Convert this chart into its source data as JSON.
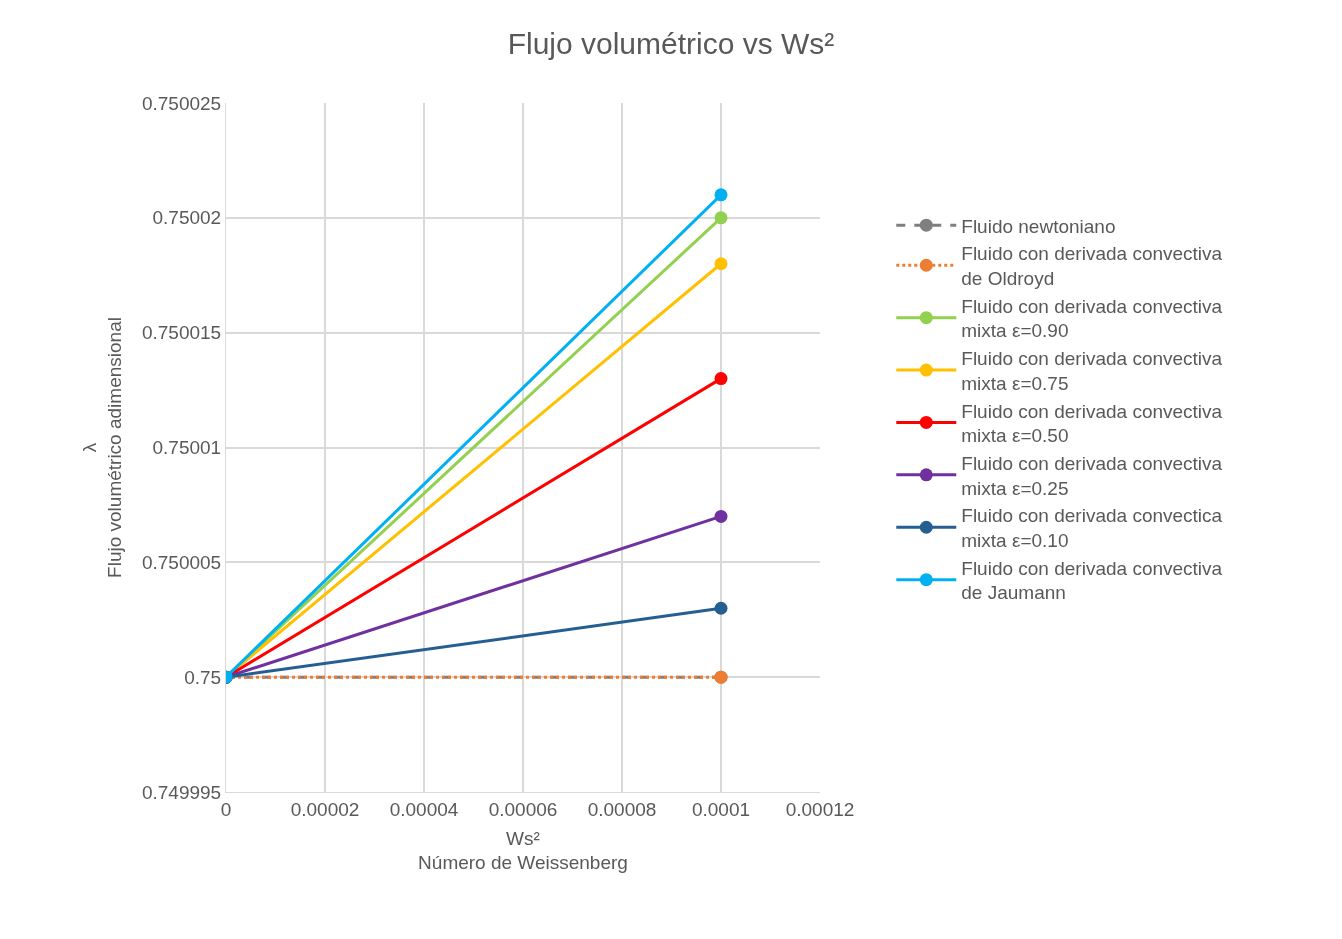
{
  "chart_data": {
    "type": "line",
    "title": "Flujo volumétrico vs Ws²",
    "xlabel": "Ws²\nNúmero de Weissenberg",
    "ylabel": "λ\nFlujo volumétrico adimensional",
    "x": [
      0,
      0.0001
    ],
    "series": [
      {
        "name": "Fluido newtoniano",
        "color": "#7f7f7f",
        "line_style": "dashed",
        "values": [
          0.75,
          0.75
        ]
      },
      {
        "name": "Fluido con derivada convectiva de Oldroyd",
        "color": "#ed7d31",
        "line_style": "dotted",
        "values": [
          0.75,
          0.75
        ]
      },
      {
        "name": "Fluido con derivada convectiva mixta ε=0.90",
        "color": "#92d050",
        "values": [
          0.75,
          0.75002
        ]
      },
      {
        "name": "Fluido con derivada convectiva mixta ε=0.75",
        "color": "#ffc000",
        "values": [
          0.75,
          0.750018
        ]
      },
      {
        "name": "Fluido con derivada convectiva mixta ε=0.50",
        "color": "#ff0000",
        "values": [
          0.75,
          0.750013
        ]
      },
      {
        "name": "Fluido con derivada convectiva mixta ε=0.25",
        "color": "#7030a0",
        "values": [
          0.75,
          0.750007
        ]
      },
      {
        "name": "Fluido con derivada convectica mixta ε=0.10",
        "color": "#255e91",
        "values": [
          0.75,
          0.750003
        ]
      },
      {
        "name": "Fluido con derivada convectiva de Jaumann",
        "color": "#00b0f0",
        "values": [
          0.75,
          0.750021
        ]
      }
    ],
    "xlim": [
      0,
      0.00012
    ],
    "xticks": [
      {
        "value": 0,
        "label": "0"
      },
      {
        "value": 2e-05,
        "label": "0.00002"
      },
      {
        "value": 4e-05,
        "label": "0.00004"
      },
      {
        "value": 6e-05,
        "label": "0.00006"
      },
      {
        "value": 8e-05,
        "label": "0.00008"
      },
      {
        "value": 0.0001,
        "label": "0.0001"
      },
      {
        "value": 0.00012,
        "label": "0.00012"
      }
    ],
    "ylim": [
      0.749995,
      0.750025
    ],
    "yticks": [
      {
        "value": 0.749995,
        "label": "0.749995"
      },
      {
        "value": 0.75,
        "label": "0.75"
      },
      {
        "value": 0.750005,
        "label": "0.750005"
      },
      {
        "value": 0.75001,
        "label": "0.75001"
      },
      {
        "value": 0.750015,
        "label": "0.750015"
      },
      {
        "value": 0.75002,
        "label": "0.75002"
      },
      {
        "value": 0.750025,
        "label": "0.750025"
      }
    ],
    "grid": true,
    "legend": "right",
    "marker": "circle",
    "line_style": "solid"
  }
}
